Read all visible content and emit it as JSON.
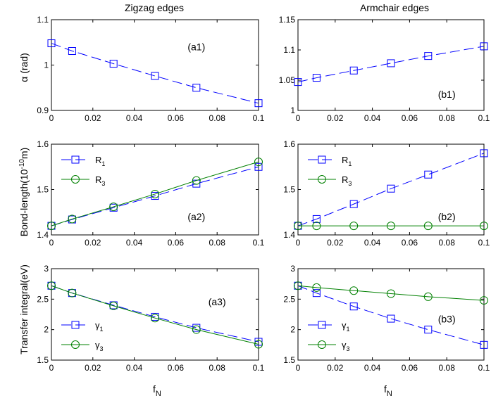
{
  "titles": {
    "left": "Zigzag edges",
    "right": "Armchair edges"
  },
  "xlabel": {
    "main": "f",
    "sub": "N"
  },
  "ylabels": {
    "row1": "α (rad)",
    "row2_main": "Bond-length(10",
    "row2_sup": "-10",
    "row2_tail": "m)",
    "row3": "Transfer integral(eV)"
  },
  "colors": {
    "blue": "#0000ff",
    "green": "#008000"
  },
  "chart_data": [
    {
      "id": "a1",
      "type": "line",
      "label": "(a1)",
      "xlim": [
        0,
        0.1
      ],
      "ylim": [
        0.9,
        1.1
      ],
      "xticks": [
        0,
        0.02,
        0.04,
        0.06,
        0.08,
        0.1
      ],
      "yticks": [
        0.9,
        1,
        1.1
      ],
      "xtick_labels": [
        "0",
        "0.02",
        "0.04",
        "0.06",
        "0.08",
        "0.1"
      ],
      "ytick_labels": [
        "0.9",
        "1",
        "1.1"
      ],
      "series": [
        {
          "color": "#0000ff",
          "marker": "square",
          "dash": "long",
          "x": [
            0,
            0.01,
            0.03,
            0.05,
            0.07,
            0.1
          ],
          "y": [
            1.048,
            1.031,
            1.003,
            0.976,
            0.95,
            0.916
          ]
        }
      ]
    },
    {
      "id": "b1",
      "type": "line",
      "label": "(b1)",
      "xlim": [
        0,
        0.1
      ],
      "ylim": [
        1,
        1.15
      ],
      "xticks": [
        0,
        0.02,
        0.04,
        0.06,
        0.08,
        0.1
      ],
      "yticks": [
        1,
        1.05,
        1.1,
        1.15
      ],
      "xtick_labels": [
        "0",
        "0.02",
        "0.04",
        "0.06",
        "0.08",
        "0.1"
      ],
      "ytick_labels": [
        "1",
        "1.05",
        "1.1",
        "1.15"
      ],
      "series": [
        {
          "color": "#0000ff",
          "marker": "square",
          "dash": "long",
          "x": [
            0,
            0.01,
            0.03,
            0.05,
            0.07,
            0.1
          ],
          "y": [
            1.047,
            1.054,
            1.066,
            1.078,
            1.09,
            1.106
          ]
        }
      ]
    },
    {
      "id": "a2",
      "type": "line",
      "label": "(a2)",
      "xlim": [
        0,
        0.1
      ],
      "ylim": [
        1.4,
        1.6
      ],
      "xticks": [
        0,
        0.02,
        0.04,
        0.06,
        0.08,
        0.1
      ],
      "yticks": [
        1.4,
        1.5,
        1.6
      ],
      "xtick_labels": [
        "0",
        "0.02",
        "0.04",
        "0.06",
        "0.08",
        "0.1"
      ],
      "ytick_labels": [
        "1.4",
        "1.5",
        "1.6"
      ],
      "legend": "top-left",
      "series": [
        {
          "name": "R",
          "sub": "1",
          "color": "#0000ff",
          "marker": "square",
          "dash": "long",
          "x": [
            0,
            0.01,
            0.03,
            0.05,
            0.07,
            0.1
          ],
          "y": [
            1.42,
            1.434,
            1.46,
            1.486,
            1.513,
            1.55
          ]
        },
        {
          "name": "R",
          "sub": "3",
          "color": "#008000",
          "marker": "circle",
          "dash": "solid",
          "x": [
            0,
            0.01,
            0.03,
            0.05,
            0.07,
            0.1
          ],
          "y": [
            1.42,
            1.435,
            1.462,
            1.49,
            1.52,
            1.561
          ]
        }
      ]
    },
    {
      "id": "b2",
      "type": "line",
      "label": "(b2)",
      "xlim": [
        0,
        0.1
      ],
      "ylim": [
        1.4,
        1.6
      ],
      "xticks": [
        0,
        0.02,
        0.04,
        0.06,
        0.08,
        0.1
      ],
      "yticks": [
        1.4,
        1.5,
        1.6
      ],
      "xtick_labels": [
        "0",
        "0.02",
        "0.04",
        "0.06",
        "0.08",
        "0.1"
      ],
      "ytick_labels": [
        "1.4",
        "1.5",
        "1.6"
      ],
      "legend": "top-left",
      "series": [
        {
          "name": "R",
          "sub": "1",
          "color": "#0000ff",
          "marker": "square",
          "dash": "long",
          "x": [
            0,
            0.01,
            0.03,
            0.05,
            0.07,
            0.1
          ],
          "y": [
            1.42,
            1.435,
            1.468,
            1.502,
            1.533,
            1.58
          ]
        },
        {
          "name": "R",
          "sub": "3",
          "color": "#008000",
          "marker": "circle",
          "dash": "solid",
          "x": [
            0,
            0.01,
            0.03,
            0.05,
            0.07,
            0.1
          ],
          "y": [
            1.42,
            1.42,
            1.42,
            1.42,
            1.42,
            1.42
          ]
        }
      ]
    },
    {
      "id": "a3",
      "type": "line",
      "label": "(a3)",
      "xlim": [
        0,
        0.1
      ],
      "ylim": [
        1.5,
        3
      ],
      "xticks": [
        0,
        0.02,
        0.04,
        0.06,
        0.08,
        0.1
      ],
      "yticks": [
        1.5,
        2,
        2.5,
        3
      ],
      "xtick_labels": [
        "0",
        "0.02",
        "0.04",
        "0.06",
        "0.08",
        "0.1"
      ],
      "ytick_labels": [
        "1.5",
        "2",
        "2.5",
        "3"
      ],
      "legend": "bottom-left",
      "series": [
        {
          "name": "γ",
          "sub": "1",
          "color": "#0000ff",
          "marker": "square",
          "dash": "long",
          "x": [
            0,
            0.01,
            0.03,
            0.05,
            0.07,
            0.1
          ],
          "y": [
            2.72,
            2.6,
            2.4,
            2.21,
            2.03,
            1.8
          ]
        },
        {
          "name": "γ",
          "sub": "3",
          "color": "#008000",
          "marker": "circle",
          "dash": "solid",
          "x": [
            0,
            0.01,
            0.03,
            0.05,
            0.07,
            0.1
          ],
          "y": [
            2.72,
            2.6,
            2.39,
            2.19,
            2.0,
            1.76
          ]
        }
      ]
    },
    {
      "id": "b3",
      "type": "line",
      "label": "(b3)",
      "xlim": [
        0,
        0.1
      ],
      "ylim": [
        1.5,
        3
      ],
      "xticks": [
        0,
        0.02,
        0.04,
        0.06,
        0.08,
        0.1
      ],
      "yticks": [
        1.5,
        2,
        2.5,
        3
      ],
      "xtick_labels": [
        "0",
        "0.02",
        "0.04",
        "0.06",
        "0.08",
        "0.1"
      ],
      "ytick_labels": [
        "1.5",
        "2",
        "2.5",
        "3"
      ],
      "legend": "bottom-left",
      "series": [
        {
          "name": "γ",
          "sub": "1",
          "color": "#0000ff",
          "marker": "square",
          "dash": "long",
          "x": [
            0,
            0.01,
            0.03,
            0.05,
            0.07,
            0.1
          ],
          "y": [
            2.72,
            2.6,
            2.38,
            2.18,
            2.0,
            1.75
          ]
        },
        {
          "name": "γ",
          "sub": "3",
          "color": "#008000",
          "marker": "circle",
          "dash": "solid",
          "x": [
            0,
            0.01,
            0.03,
            0.05,
            0.07,
            0.1
          ],
          "y": [
            2.72,
            2.69,
            2.64,
            2.59,
            2.54,
            2.48
          ]
        }
      ]
    }
  ]
}
